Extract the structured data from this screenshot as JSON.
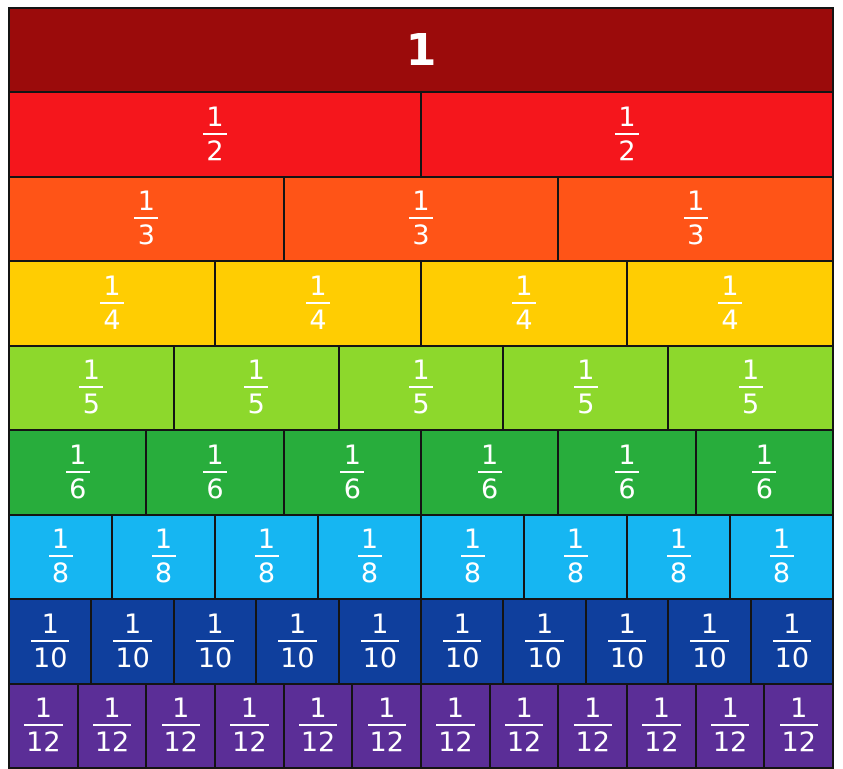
{
  "rows": [
    {
      "label": "1",
      "count": 1,
      "color": "#9b0b0b",
      "whole": true
    },
    {
      "numerator": "1",
      "denominator": "2",
      "count": 2,
      "color": "#f5161c"
    },
    {
      "numerator": "1",
      "denominator": "3",
      "count": 3,
      "color": "#ff5417"
    },
    {
      "numerator": "1",
      "denominator": "4",
      "count": 4,
      "color": "#ffcd02"
    },
    {
      "numerator": "1",
      "denominator": "5",
      "count": 5,
      "color": "#8dd82c"
    },
    {
      "numerator": "1",
      "denominator": "6",
      "count": 6,
      "color": "#28ad3c"
    },
    {
      "numerator": "1",
      "denominator": "8",
      "count": 8,
      "color": "#16b6f2"
    },
    {
      "numerator": "1",
      "denominator": "10",
      "count": 10,
      "color": "#0f3f9d"
    },
    {
      "numerator": "1",
      "denominator": "12",
      "count": 12,
      "color": "#5b2e97"
    }
  ]
}
